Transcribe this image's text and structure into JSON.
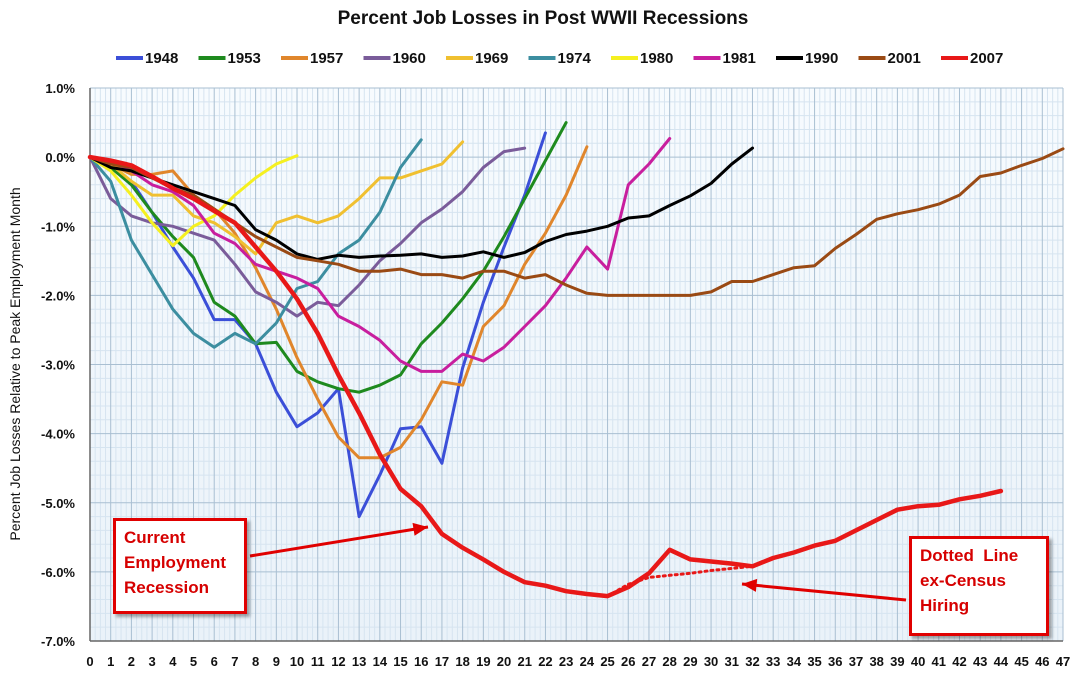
{
  "chart_data": {
    "type": "line",
    "title": "Percent Job Losses in Post WWII Recessions",
    "xlabel": "",
    "ylabel": "Percent Job Losses Relative to Peak Employment Month",
    "xlim": [
      0,
      47
    ],
    "ylim": [
      -7,
      1
    ],
    "x_ticks": [
      0,
      1,
      2,
      3,
      4,
      5,
      6,
      7,
      8,
      9,
      10,
      11,
      12,
      13,
      14,
      15,
      16,
      17,
      18,
      19,
      20,
      21,
      22,
      23,
      24,
      25,
      26,
      27,
      28,
      29,
      30,
      31,
      32,
      33,
      34,
      35,
      36,
      37,
      38,
      39,
      40,
      41,
      42,
      43,
      44,
      45,
      46,
      47
    ],
    "y_ticks": [
      {
        "value": 1,
        "label": "1.0%"
      },
      {
        "value": 0,
        "label": "0.0%"
      },
      {
        "value": -1,
        "label": "-1.0%"
      },
      {
        "value": -2,
        "label": "-2.0%"
      },
      {
        "value": -3,
        "label": "-3.0%"
      },
      {
        "value": -4,
        "label": "-4.0%"
      },
      {
        "value": -5,
        "label": "-5.0%"
      },
      {
        "value": -6,
        "label": "-6.0%"
      },
      {
        "value": -7,
        "label": "-7.0%"
      }
    ],
    "grid": true,
    "legend_position": "top",
    "series": [
      {
        "name": "1948",
        "color": "#3b4fd8",
        "width": 3,
        "values": [
          0,
          -0.15,
          -0.35,
          -0.8,
          -1.3,
          -1.75,
          -2.35,
          -2.35,
          -2.7,
          -3.4,
          -3.9,
          -3.7,
          -3.35,
          -5.2,
          -4.6,
          -3.93,
          -3.9,
          -4.43,
          -3.05,
          -2.1,
          -1.3,
          -0.55,
          0.35
        ]
      },
      {
        "name": "1953",
        "color": "#1e8a1e",
        "width": 3,
        "values": [
          0,
          -0.15,
          -0.4,
          -0.8,
          -1.15,
          -1.45,
          -2.1,
          -2.3,
          -2.7,
          -2.68,
          -3.1,
          -3.25,
          -3.35,
          -3.4,
          -3.3,
          -3.15,
          -2.7,
          -2.4,
          -2.05,
          -1.65,
          -1.15,
          -0.6,
          -0.05,
          0.5
        ]
      },
      {
        "name": "1957",
        "color": "#e0862c",
        "width": 3,
        "values": [
          0,
          -0.1,
          -0.25,
          -0.25,
          -0.2,
          -0.55,
          -0.75,
          -1.1,
          -1.6,
          -2.2,
          -2.9,
          -3.5,
          -4.05,
          -4.35,
          -4.35,
          -4.2,
          -3.8,
          -3.25,
          -3.3,
          -2.45,
          -2.15,
          -1.55,
          -1.1,
          -0.55,
          0.15
        ]
      },
      {
        "name": "1960",
        "color": "#7a5c9a",
        "width": 3,
        "values": [
          0,
          -0.6,
          -0.85,
          -0.95,
          -1.0,
          -1.1,
          -1.2,
          -1.55,
          -1.95,
          -2.1,
          -2.3,
          -2.1,
          -2.15,
          -1.85,
          -1.5,
          -1.25,
          -0.95,
          -0.75,
          -0.5,
          -0.15,
          0.08,
          0.13
        ]
      },
      {
        "name": "1969",
        "color": "#f0c030",
        "width": 3,
        "values": [
          0,
          -0.1,
          -0.35,
          -0.55,
          -0.55,
          -0.85,
          -0.95,
          -1.15,
          -1.4,
          -0.95,
          -0.85,
          -0.95,
          -0.85,
          -0.6,
          -0.3,
          -0.3,
          -0.2,
          -0.1,
          0.22
        ]
      },
      {
        "name": "1974",
        "color": "#3c8ea0",
        "width": 3,
        "values": [
          0,
          -0.35,
          -1.2,
          -1.7,
          -2.2,
          -2.55,
          -2.75,
          -2.55,
          -2.7,
          -2.4,
          -1.9,
          -1.8,
          -1.4,
          -1.2,
          -0.8,
          -0.15,
          0.25
        ]
      },
      {
        "name": "1980",
        "color": "#f5f020",
        "width": 3,
        "values": [
          0,
          -0.2,
          -0.55,
          -0.95,
          -1.28,
          -1.0,
          -0.85,
          -0.55,
          -0.3,
          -0.1,
          0.02
        ]
      },
      {
        "name": "1981",
        "color": "#c81e9e",
        "width": 3,
        "values": [
          0,
          -0.05,
          -0.2,
          -0.4,
          -0.5,
          -0.7,
          -1.1,
          -1.25,
          -1.55,
          -1.65,
          -1.75,
          -1.9,
          -2.3,
          -2.45,
          -2.65,
          -2.95,
          -3.1,
          -3.1,
          -2.85,
          -2.95,
          -2.75,
          -2.45,
          -2.15,
          -1.75,
          -1.3,
          -1.62,
          -0.4,
          -0.1,
          0.27
        ]
      },
      {
        "name": "1990",
        "color": "#000000",
        "width": 3,
        "values": [
          0,
          -0.15,
          -0.2,
          -0.3,
          -0.4,
          -0.5,
          -0.6,
          -0.7,
          -1.05,
          -1.2,
          -1.4,
          -1.48,
          -1.42,
          -1.45,
          -1.43,
          -1.42,
          -1.4,
          -1.45,
          -1.43,
          -1.37,
          -1.45,
          -1.38,
          -1.22,
          -1.12,
          -1.07,
          -1.0,
          -0.88,
          -0.85,
          -0.7,
          -0.56,
          -0.38,
          -0.1,
          0.13
        ]
      },
      {
        "name": "2001",
        "color": "#9a4a14",
        "width": 3,
        "values": [
          0,
          -0.1,
          -0.15,
          -0.3,
          -0.45,
          -0.55,
          -0.75,
          -0.95,
          -1.15,
          -1.3,
          -1.45,
          -1.5,
          -1.55,
          -1.65,
          -1.65,
          -1.62,
          -1.7,
          -1.7,
          -1.75,
          -1.65,
          -1.65,
          -1.75,
          -1.7,
          -1.85,
          -1.97,
          -2.0,
          -2.0,
          -2.0,
          -2.0,
          -2.0,
          -1.95,
          -1.8,
          -1.8,
          -1.7,
          -1.6,
          -1.57,
          -1.32,
          -1.12,
          -0.9,
          -0.82,
          -0.76,
          -0.68,
          -0.55,
          -0.28,
          -0.23,
          -0.12,
          -0.02,
          0.12
        ]
      },
      {
        "name": "2007",
        "color": "#e81818",
        "width": 4.5,
        "values": [
          0,
          -0.05,
          -0.12,
          -0.28,
          -0.45,
          -0.6,
          -0.78,
          -0.95,
          -1.3,
          -1.65,
          -2.05,
          -2.55,
          -3.15,
          -3.7,
          -4.3,
          -4.8,
          -5.05,
          -5.45,
          -5.65,
          -5.82,
          -6.0,
          -6.15,
          -6.2,
          -6.28,
          -6.32,
          -6.35,
          -6.22,
          -6.02,
          -5.68,
          -5.82,
          -5.85,
          -5.88,
          -5.92,
          -5.8,
          -5.72,
          -5.62,
          -5.55,
          -5.4,
          -5.25,
          -5.1,
          -5.05,
          -5.03,
          -4.95,
          -4.9,
          -4.83
        ]
      },
      {
        "name": "2007 ex-Census",
        "color": "#e81818",
        "width": 3,
        "dashed": true,
        "legend": false,
        "x": [
          25,
          26,
          27,
          28,
          29,
          30,
          31,
          32
        ],
        "values": [
          -6.35,
          -6.18,
          -6.08,
          -6.05,
          -6.02,
          -5.98,
          -5.95,
          -5.92
        ]
      }
    ],
    "annotations": [
      {
        "id": "current",
        "lines": [
          "Current",
          "Employment",
          "Recession"
        ]
      },
      {
        "id": "census",
        "lines": [
          "Dotted  Line",
          "ex-Census",
          "Hiring"
        ]
      }
    ]
  }
}
